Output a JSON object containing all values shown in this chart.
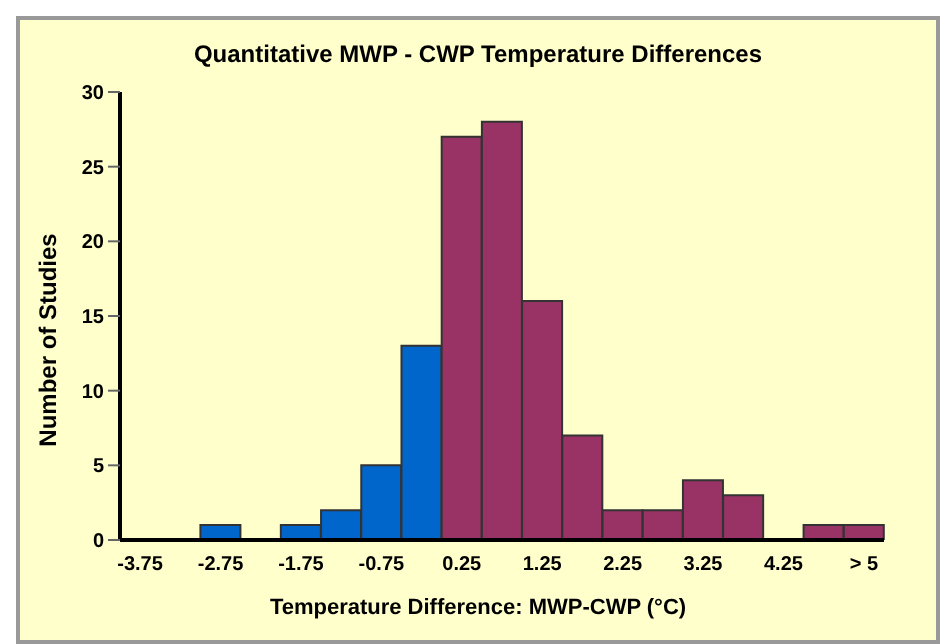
{
  "chart_data": {
    "type": "bar",
    "title": "Quantitative MWP - CWP Temperature Differences",
    "xlabel": "Temperature Difference: MWP-CWP (°C)",
    "ylabel": "Number of Studies",
    "categories": [
      "-3.75",
      null,
      "-2.75",
      null,
      "-1.75",
      null,
      "-0.75",
      null,
      "0.25",
      null,
      "1.25",
      null,
      "2.25",
      null,
      "3.25",
      null,
      "4.25",
      null,
      "> 5"
    ],
    "values": [
      0,
      0,
      1,
      0,
      1,
      2,
      5,
      13,
      27,
      28,
      16,
      7,
      2,
      2,
      4,
      3,
      0,
      1,
      1
    ],
    "colors": [
      "#0066cc",
      "#0066cc",
      "#0066cc",
      "#0066cc",
      "#0066cc",
      "#0066cc",
      "#0066cc",
      "#0066cc",
      "#993366",
      "#993366",
      "#993366",
      "#993366",
      "#993366",
      "#993366",
      "#993366",
      "#993366",
      "#993366",
      "#993366",
      "#993366"
    ],
    "ylim": [
      0,
      30
    ],
    "yticks": [
      0,
      5,
      10,
      15,
      20,
      25,
      30
    ],
    "grid": false,
    "legend": false
  }
}
